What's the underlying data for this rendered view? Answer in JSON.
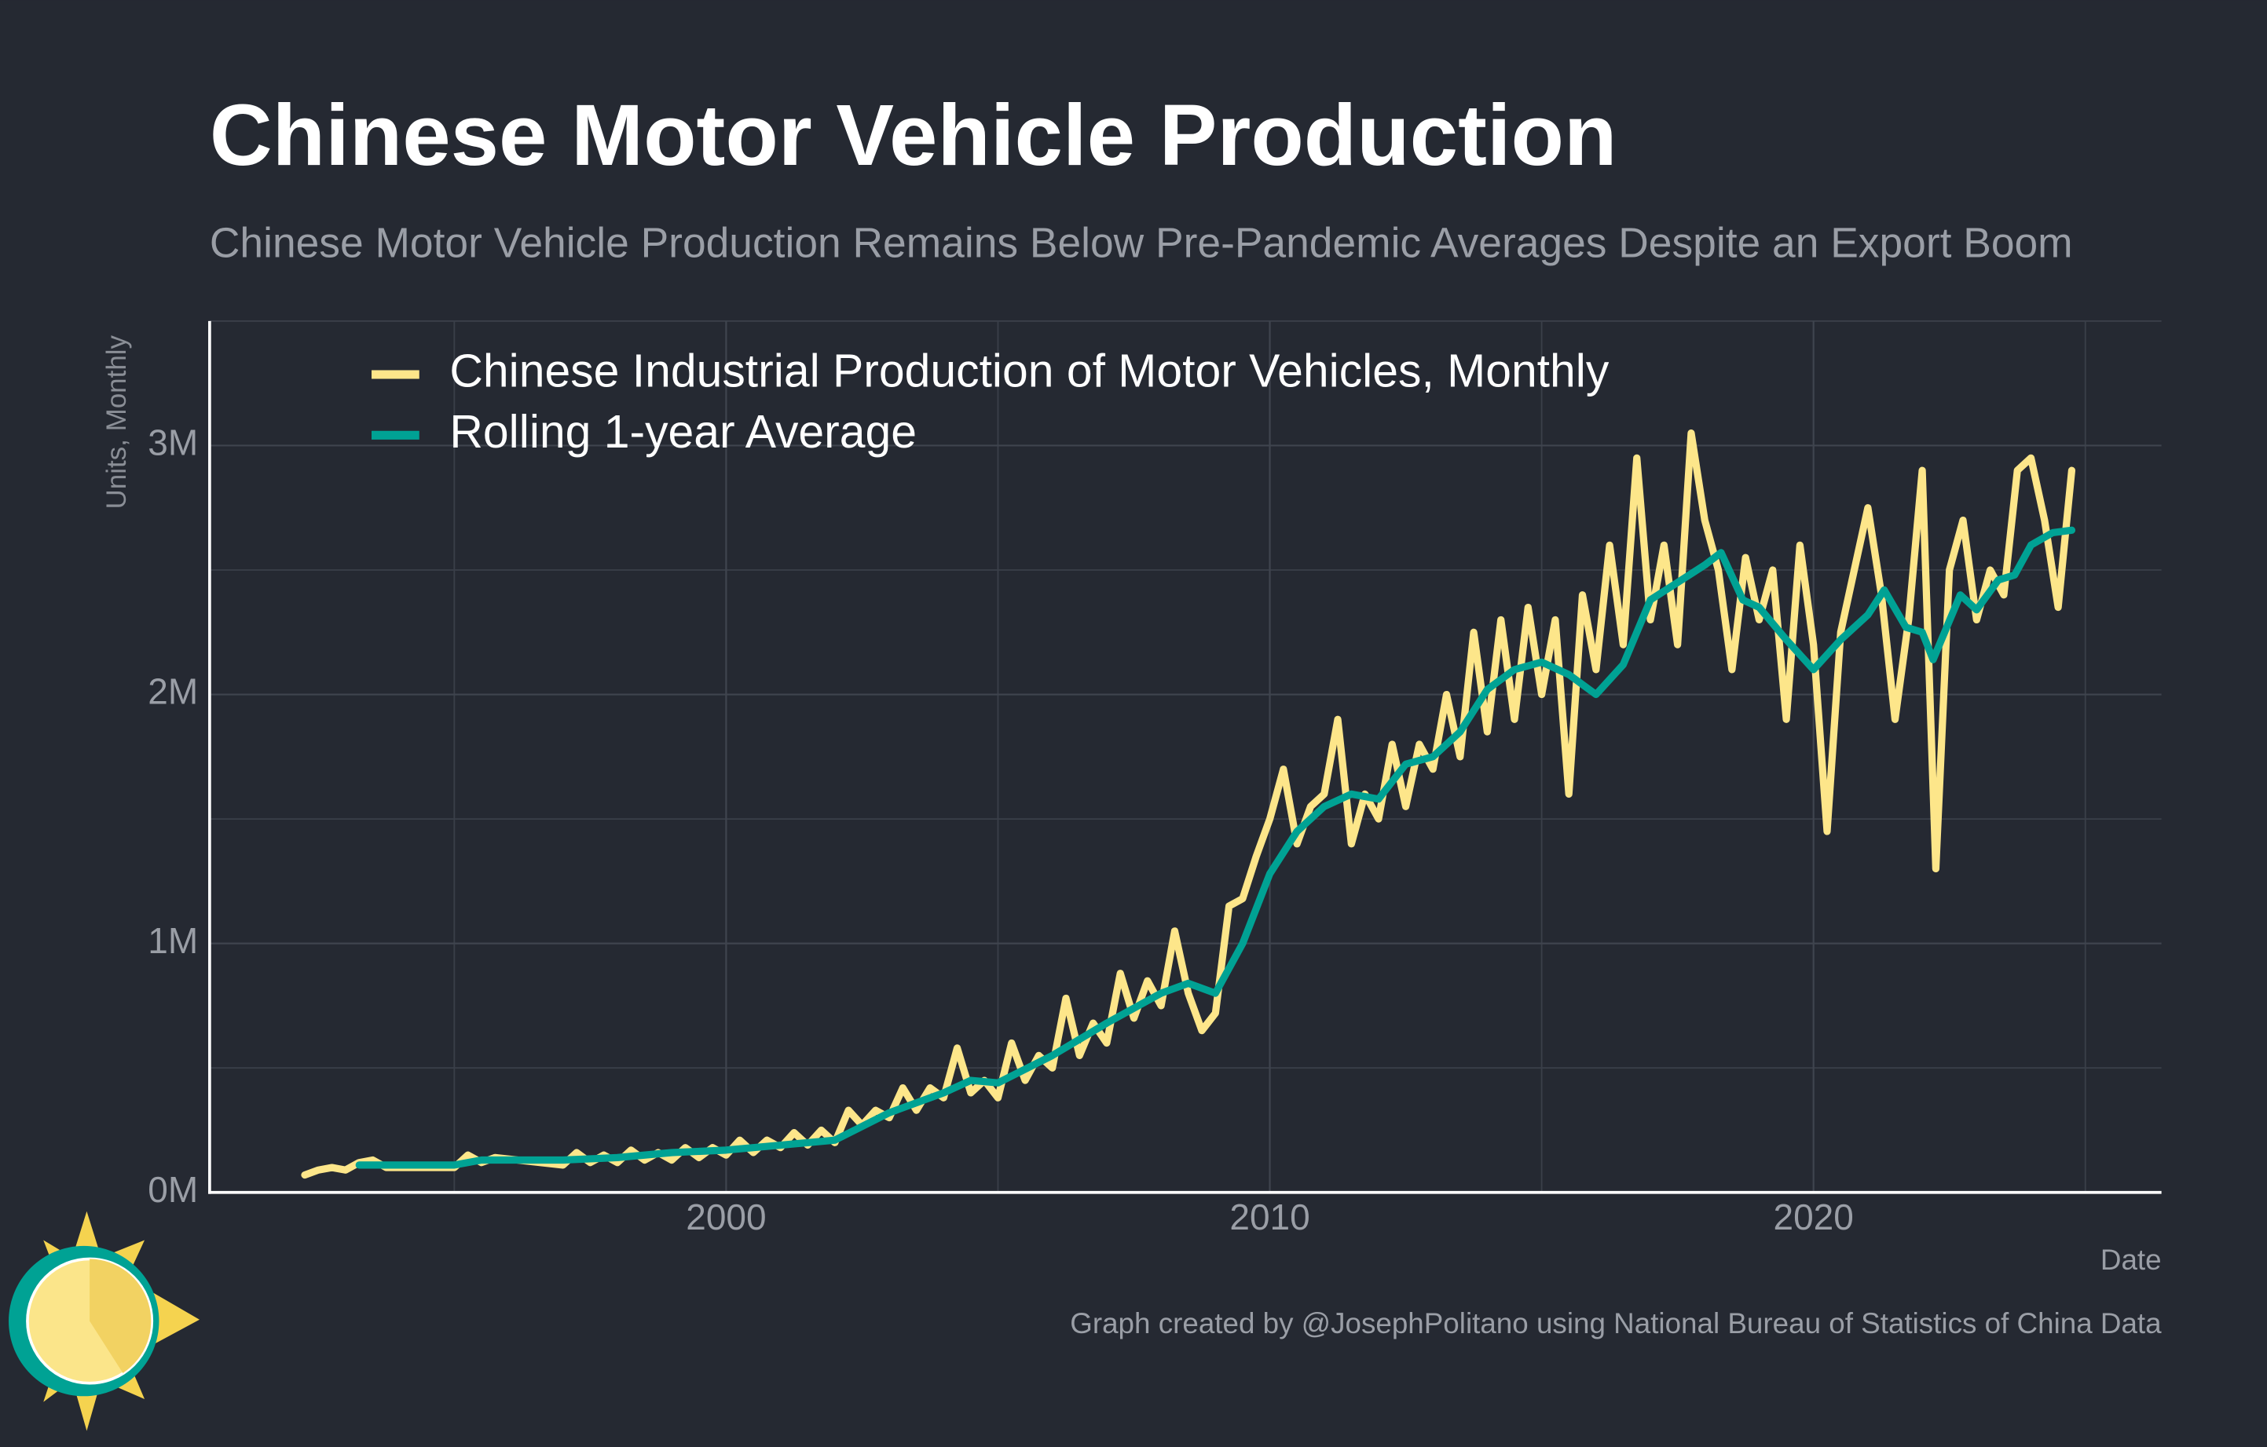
{
  "chart_data": {
    "type": "line",
    "title": "Chinese Motor Vehicle Production",
    "subtitle": "Chinese Motor Vehicle Production Remains Below Pre-Pandemic Averages Despite an Export Boom",
    "y_label": "Units, Monthly",
    "x_label": "Date",
    "caption": "Graph created by @JosephPolitano using National Bureau of Statistics of China Data",
    "xlim": [
      1990.5,
      2026.4
    ],
    "xticks": [
      2000,
      2010,
      2020
    ],
    "minor_xticks": [
      1995,
      2005,
      2015,
      2025
    ],
    "ylim": [
      0,
      3500000
    ],
    "yticks": [
      {
        "value": 0,
        "label": "0M"
      },
      {
        "value": 1000000,
        "label": "1M"
      },
      {
        "value": 2000000,
        "label": "2M"
      },
      {
        "value": 3000000,
        "label": "3M"
      }
    ],
    "minor_yticks": [
      500000,
      1500000,
      2500000,
      3500000
    ],
    "grid": true,
    "legend": "top-left",
    "series": [
      {
        "name": "Chinese Industrial Production of Motor Vehicles, Monthly",
        "color": "#fde68a",
        "x": [
          1992.25,
          1992.5,
          1992.75,
          1993,
          1993.25,
          1993.5,
          1993.75,
          1995,
          1995.25,
          1995.5,
          1995.75,
          1997,
          1997.25,
          1997.5,
          1997.75,
          1998,
          1998.25,
          1998.5,
          1998.75,
          1999,
          1999.25,
          1999.5,
          1999.75,
          2000,
          2000.25,
          2000.5,
          2000.75,
          2001,
          2001.25,
          2001.5,
          2001.75,
          2002,
          2002.25,
          2002.5,
          2002.75,
          2003,
          2003.25,
          2003.5,
          2003.75,
          2004,
          2004.25,
          2004.5,
          2004.75,
          2005,
          2005.25,
          2005.5,
          2005.75,
          2006,
          2006.25,
          2006.5,
          2006.75,
          2007,
          2007.25,
          2007.5,
          2007.75,
          2008,
          2008.25,
          2008.5,
          2008.75,
          2009,
          2009.25,
          2009.5,
          2009.75,
          2010,
          2010.25,
          2010.5,
          2010.75,
          2011,
          2011.25,
          2011.5,
          2011.75,
          2012,
          2012.25,
          2012.5,
          2012.75,
          2013,
          2013.25,
          2013.5,
          2013.75,
          2014,
          2014.25,
          2014.5,
          2014.75,
          2015,
          2015.25,
          2015.5,
          2015.75,
          2016,
          2016.25,
          2016.5,
          2016.75,
          2017,
          2017.25,
          2017.5,
          2017.75,
          2018,
          2018.25,
          2018.5,
          2018.75,
          2019,
          2019.25,
          2019.5,
          2019.75,
          2020,
          2020.25,
          2020.5,
          2020.75,
          2021,
          2021.25,
          2021.5,
          2021.75,
          2022,
          2022.25,
          2022.5,
          2022.75,
          2023,
          2023.25,
          2023.5,
          2023.75,
          2024,
          2024.25,
          2024.5,
          2024.75
        ],
        "values": [
          70000,
          90000,
          100000,
          90000,
          120000,
          130000,
          100000,
          100000,
          150000,
          120000,
          140000,
          110000,
          160000,
          120000,
          150000,
          120000,
          170000,
          130000,
          160000,
          130000,
          180000,
          140000,
          180000,
          150000,
          210000,
          160000,
          210000,
          180000,
          240000,
          190000,
          250000,
          200000,
          330000,
          270000,
          330000,
          300000,
          420000,
          330000,
          420000,
          380000,
          580000,
          400000,
          450000,
          380000,
          600000,
          450000,
          550000,
          500000,
          780000,
          550000,
          680000,
          600000,
          880000,
          700000,
          850000,
          750000,
          1050000,
          800000,
          650000,
          720000,
          1150000,
          1180000,
          1350000,
          1500000,
          1700000,
          1400000,
          1550000,
          1600000,
          1900000,
          1400000,
          1600000,
          1500000,
          1800000,
          1550000,
          1800000,
          1700000,
          2000000,
          1750000,
          2250000,
          1850000,
          2300000,
          1900000,
          2350000,
          2000000,
          2300000,
          1600000,
          2400000,
          2100000,
          2600000,
          2200000,
          2950000,
          2300000,
          2600000,
          2200000,
          3050000,
          2700000,
          2500000,
          2100000,
          2550000,
          2300000,
          2500000,
          1900000,
          2600000,
          2200000,
          1450000,
          2250000,
          2500000,
          2750000,
          2400000,
          1900000,
          2300000,
          2900000,
          1300000,
          2500000,
          2700000,
          2300000,
          2500000,
          2400000,
          2900000,
          2950000,
          2700000,
          2350000,
          2900000
        ]
      },
      {
        "name": "Rolling 1-year Average",
        "color": "#00a294",
        "x": [
          1993.25,
          1995,
          1995.5,
          1997,
          1998,
          1999,
          2000,
          2001,
          2002,
          2003,
          2004,
          2004.5,
          2005,
          2006,
          2007,
          2008,
          2008.5,
          2009,
          2009.5,
          2010,
          2010.5,
          2011,
          2011.5,
          2012,
          2012.5,
          2013,
          2013.5,
          2014,
          2014.5,
          2015,
          2015.5,
          2016,
          2016.5,
          2017,
          2017.5,
          2018,
          2018.3,
          2018.7,
          2019,
          2019.5,
          2020,
          2020.5,
          2021,
          2021.3,
          2021.7,
          2022,
          2022.2,
          2022.7,
          2023,
          2023.4,
          2023.7,
          2024,
          2024.4,
          2024.75
        ],
        "values": [
          110000,
          110000,
          130000,
          130000,
          140000,
          160000,
          170000,
          190000,
          210000,
          320000,
          400000,
          450000,
          440000,
          550000,
          680000,
          800000,
          840000,
          800000,
          1000000,
          1280000,
          1450000,
          1550000,
          1600000,
          1580000,
          1720000,
          1750000,
          1850000,
          2020000,
          2100000,
          2130000,
          2080000,
          2000000,
          2120000,
          2380000,
          2450000,
          2520000,
          2570000,
          2380000,
          2350000,
          2220000,
          2100000,
          2220000,
          2320000,
          2420000,
          2270000,
          2250000,
          2140000,
          2400000,
          2340000,
          2460000,
          2480000,
          2600000,
          2650000,
          2660000
        ]
      }
    ]
  }
}
